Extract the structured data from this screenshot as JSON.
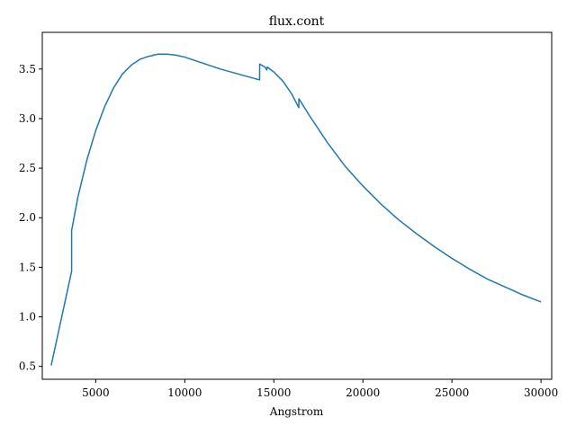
{
  "chart_data": {
    "type": "line",
    "title": "flux.cont",
    "xlabel": "Angstrom",
    "ylabel": "",
    "xlim": [
      2000,
      30600
    ],
    "ylim": [
      0.37,
      3.87
    ],
    "grid": false,
    "x_ticks": [
      {
        "value": 5000,
        "label": "5000"
      },
      {
        "value": 10000,
        "label": "10000"
      },
      {
        "value": 15000,
        "label": "15000"
      },
      {
        "value": 20000,
        "label": "20000"
      },
      {
        "value": 25000,
        "label": "25000"
      },
      {
        "value": 30000,
        "label": "30000"
      }
    ],
    "y_ticks": [
      {
        "value": 0.5,
        "label": "0.5"
      },
      {
        "value": 1.0,
        "label": "1.0"
      },
      {
        "value": 1.5,
        "label": "1.5"
      },
      {
        "value": 2.0,
        "label": "2.0"
      },
      {
        "value": 2.5,
        "label": "2.5"
      },
      {
        "value": 3.0,
        "label": "3.0"
      },
      {
        "value": 3.5,
        "label": "3.5"
      }
    ],
    "series": [
      {
        "color": "#1f77b4",
        "x": [
          2500,
          3647,
          3647,
          4000,
          4500,
          5000,
          5500,
          6000,
          6500,
          7000,
          7500,
          8000,
          8200,
          8206,
          8500,
          9000,
          9500,
          10000,
          11000,
          12000,
          13000,
          14000,
          14200,
          14206,
          14500,
          14600,
          14630,
          15000,
          15500,
          16000,
          16400,
          16406,
          17000,
          18000,
          19000,
          20000,
          21000,
          22000,
          23000,
          24000,
          25000,
          26000,
          27000,
          28000,
          29000,
          30000
        ],
        "y": [
          0.51,
          1.46,
          1.87,
          2.21,
          2.58,
          2.88,
          3.12,
          3.31,
          3.45,
          3.54,
          3.6,
          3.63,
          3.635,
          3.64,
          3.65,
          3.65,
          3.64,
          3.62,
          3.56,
          3.5,
          3.45,
          3.4,
          3.39,
          3.55,
          3.52,
          3.49,
          3.52,
          3.47,
          3.38,
          3.25,
          3.11,
          3.2,
          3.03,
          2.76,
          2.52,
          2.32,
          2.14,
          1.98,
          1.84,
          1.71,
          1.59,
          1.48,
          1.38,
          1.3,
          1.22,
          1.15
        ]
      }
    ]
  }
}
